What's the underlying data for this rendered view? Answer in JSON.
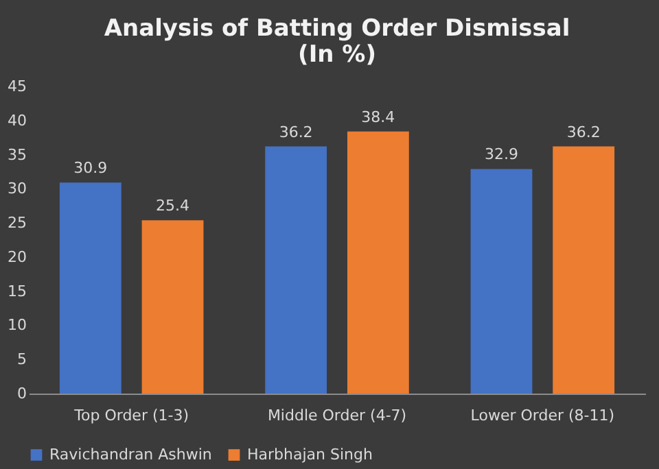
{
  "chart_data": {
    "type": "bar",
    "title": [
      "Analysis  of Batting Order Dismissal",
      "(In %)"
    ],
    "categories": [
      "Top Order (1-3)",
      "Middle Order (4-7)",
      "Lower Order (8-11)"
    ],
    "series": [
      {
        "name": "Ravichandran Ashwin",
        "color": "#4472c4",
        "values": [
          30.9,
          36.2,
          32.9
        ]
      },
      {
        "name": "Harbhajan Singh",
        "color": "#ed7d31",
        "values": [
          25.4,
          38.4,
          36.2
        ]
      }
    ],
    "ylim": [
      0,
      45
    ],
    "yticks": [
      0,
      5,
      10,
      15,
      20,
      25,
      30,
      35,
      40,
      45
    ],
    "grid": false,
    "legend": "bottom",
    "data_labels": true
  }
}
